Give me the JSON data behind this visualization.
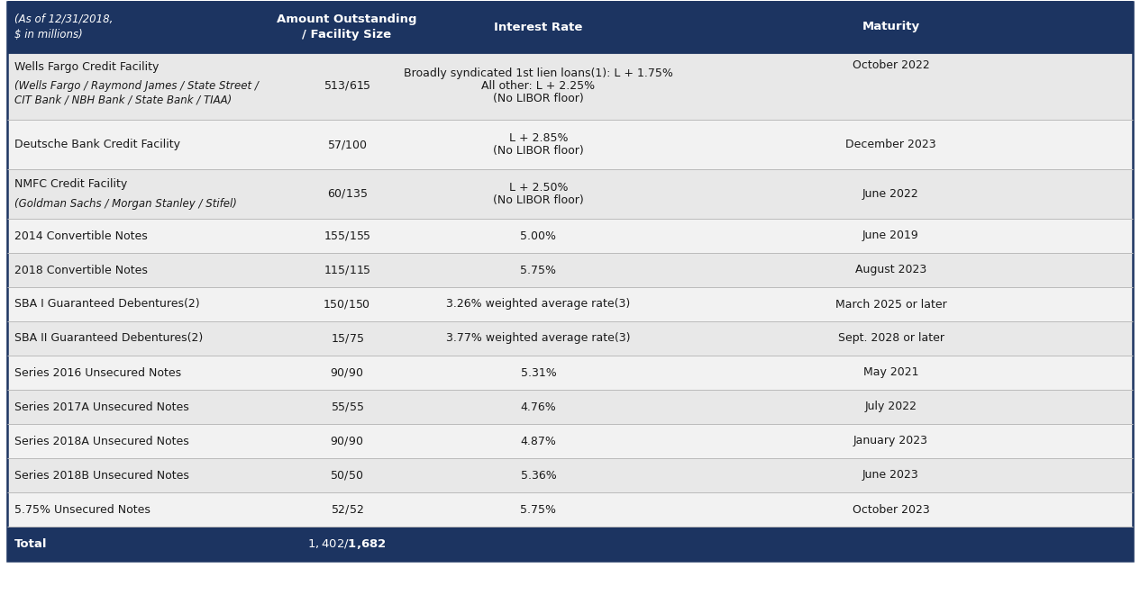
{
  "header_bg": "#1c3461",
  "header_text_color": "#ffffff",
  "row_bg_dark": "#e8e8e8",
  "row_bg_light": "#f2f2f2",
  "total_bg": "#1c3461",
  "total_text_color": "#ffffff",
  "border_color": "#1c3461",
  "text_color": "#1a1a1a",
  "fig_bg": "#ffffff",
  "header_row": {
    "col0": "(As of 12/31/2018,\n$ in millions)",
    "col1": "Amount Outstanding\n/ Facility Size",
    "col2": "Interest Rate",
    "col3": "Maturity"
  },
  "rows": [
    {
      "col0_main": "Wells Fargo Credit Facility",
      "col0_sub": "(Wells Fargo / Raymond James / State Street /\nCIT Bank / NBH Bank / State Bank / TIAA)",
      "col1": "$513 / $615",
      "col2_lines": [
        "Broadly syndicated 1st lien loans(1): L + 1.75%",
        "All other: L + 2.25%",
        "(No LIBOR floor)"
      ],
      "col3": "October 2022",
      "bg": "#e8e8e8",
      "col3_valign": "top"
    },
    {
      "col0_main": "Deutsche Bank Credit Facility",
      "col0_sub": "",
      "col1": "$57 / $100",
      "col2_lines": [
        "L + 2.85%",
        "(No LIBOR floor)"
      ],
      "col3": "December 2023",
      "bg": "#f2f2f2",
      "col3_valign": "center"
    },
    {
      "col0_main": "NMFC Credit Facility",
      "col0_sub": "(Goldman Sachs / Morgan Stanley / Stifel)",
      "col1": "$60 / $135",
      "col2_lines": [
        "L + 2.50%",
        "(No LIBOR floor)"
      ],
      "col3": "June 2022",
      "bg": "#e8e8e8",
      "col3_valign": "center"
    },
    {
      "col0_main": "2014 Convertible Notes",
      "col0_sub": "",
      "col1": "$155 / $155",
      "col2_lines": [
        "5.00%"
      ],
      "col3": "June 2019",
      "bg": "#f2f2f2",
      "col3_valign": "center"
    },
    {
      "col0_main": "2018 Convertible Notes",
      "col0_sub": "",
      "col1": "$115 / $115",
      "col2_lines": [
        "5.75%"
      ],
      "col3": "August 2023",
      "bg": "#e8e8e8",
      "col3_valign": "center"
    },
    {
      "col0_main": "SBA I Guaranteed Debentures(2)",
      "col0_sub": "",
      "col1": "$150 / $150",
      "col2_lines": [
        "3.26% weighted average rate(3)"
      ],
      "col3": "March 2025 or later",
      "bg": "#f2f2f2",
      "col3_valign": "center"
    },
    {
      "col0_main": "SBA II Guaranteed Debentures(2)",
      "col0_sub": "",
      "col1": "$15 / $75",
      "col2_lines": [
        "3.77% weighted average rate(3)"
      ],
      "col3": "Sept. 2028 or later",
      "bg": "#e8e8e8",
      "col3_valign": "center"
    },
    {
      "col0_main": "Series 2016 Unsecured Notes",
      "col0_sub": "",
      "col1": "$90 / $90",
      "col2_lines": [
        "5.31%"
      ],
      "col3": "May 2021",
      "bg": "#f2f2f2",
      "col3_valign": "center"
    },
    {
      "col0_main": "Series 2017A Unsecured Notes",
      "col0_sub": "",
      "col1": "$55 / $55",
      "col2_lines": [
        "4.76%"
      ],
      "col3": "July 2022",
      "bg": "#e8e8e8",
      "col3_valign": "center"
    },
    {
      "col0_main": "Series 2018A Unsecured Notes",
      "col0_sub": "",
      "col1": "$90 / $90",
      "col2_lines": [
        "4.87%"
      ],
      "col3": "January 2023",
      "bg": "#f2f2f2",
      "col3_valign": "center"
    },
    {
      "col0_main": "Series 2018B Unsecured Notes",
      "col0_sub": "",
      "col1": "$50 / $50",
      "col2_lines": [
        "5.36%"
      ],
      "col3": "June 2023",
      "bg": "#e8e8e8",
      "col3_valign": "center"
    },
    {
      "col0_main": "5.75% Unsecured Notes",
      "col0_sub": "",
      "col1": "$52 / $52",
      "col2_lines": [
        "5.75%"
      ],
      "col3": "October 2023",
      "bg": "#f2f2f2",
      "col3_valign": "center"
    }
  ],
  "total_row": {
    "col0": "Total",
    "col1": "$1,402 / $1,682"
  }
}
